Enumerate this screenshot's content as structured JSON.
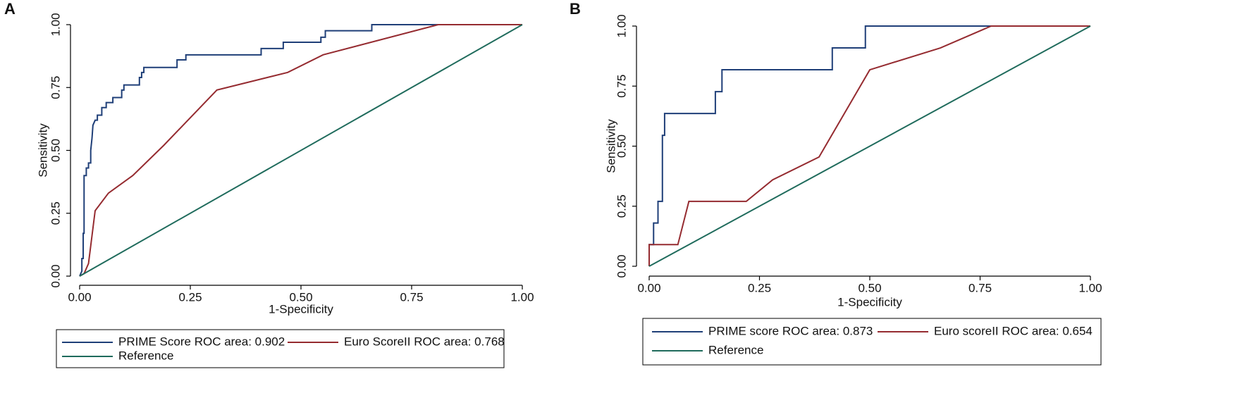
{
  "chart_data": [
    {
      "type": "line",
      "panel_label": "A",
      "x_label": "1-Specificity",
      "y_label": "Sensitivity",
      "xlim": [
        0,
        1
      ],
      "ylim": [
        0,
        1
      ],
      "xticks": [
        {
          "value": 0,
          "label": "0.00"
        },
        {
          "value": 0.25,
          "label": "0.25"
        },
        {
          "value": 0.5,
          "label": "0.50"
        },
        {
          "value": 0.75,
          "label": "0.75"
        },
        {
          "value": 1,
          "label": "1.00"
        }
      ],
      "yticks": [
        {
          "value": 0,
          "label": "0.00"
        },
        {
          "value": 0.25,
          "label": "0.25"
        },
        {
          "value": 0.5,
          "label": "0.50"
        },
        {
          "value": 0.75,
          "label": "0.75"
        },
        {
          "value": 1,
          "label": "1.00"
        }
      ],
      "series": [
        {
          "name": "PRIME Score ROC area: 0.902",
          "color": "#1f3f78",
          "x": [
            0,
            0.005,
            0.005,
            0.008,
            0.008,
            0.01,
            0.01,
            0.015,
            0.015,
            0.02,
            0.02,
            0.025,
            0.025,
            0.028,
            0.03,
            0.035,
            0.04,
            0.04,
            0.05,
            0.05,
            0.06,
            0.06,
            0.075,
            0.075,
            0.095,
            0.095,
            0.1,
            0.1,
            0.135,
            0.135,
            0.14,
            0.14,
            0.145,
            0.145,
            0.22,
            0.22,
            0.24,
            0.24,
            0.41,
            0.41,
            0.46,
            0.46,
            0.545,
            0.545,
            0.555,
            0.555,
            0.66,
            0.66,
            1
          ],
          "values": [
            0,
            0.02,
            0.07,
            0.07,
            0.17,
            0.17,
            0.4,
            0.4,
            0.43,
            0.43,
            0.45,
            0.45,
            0.5,
            0.55,
            0.6,
            0.62,
            0.62,
            0.64,
            0.64,
            0.67,
            0.67,
            0.69,
            0.69,
            0.71,
            0.71,
            0.74,
            0.74,
            0.76,
            0.76,
            0.79,
            0.79,
            0.81,
            0.81,
            0.83,
            0.83,
            0.86,
            0.86,
            0.88,
            0.88,
            0.905,
            0.905,
            0.93,
            0.93,
            0.95,
            0.95,
            0.976,
            0.976,
            1,
            1
          ]
        },
        {
          "name": "Euro ScoreII ROC area: 0.768",
          "color": "#952b30",
          "x": [
            0,
            0.01,
            0.02,
            0.025,
            0.035,
            0.065,
            0.12,
            0.19,
            0.31,
            0.47,
            0.55,
            0.81,
            1
          ],
          "values": [
            0,
            0.01,
            0.05,
            0.12,
            0.26,
            0.33,
            0.4,
            0.52,
            0.74,
            0.81,
            0.88,
            1,
            1
          ]
        },
        {
          "name": "Reference",
          "color": "#1f6b5c",
          "x": [
            0,
            1
          ],
          "values": [
            0,
            1
          ]
        }
      ]
    },
    {
      "type": "line",
      "panel_label": "B",
      "x_label": "1-Specificity",
      "y_label": "Sensitivity",
      "xlim": [
        0,
        1
      ],
      "ylim": [
        0,
        1
      ],
      "xticks": [
        {
          "value": 0,
          "label": "0.00"
        },
        {
          "value": 0.25,
          "label": "0.25"
        },
        {
          "value": 0.5,
          "label": "0.50"
        },
        {
          "value": 0.75,
          "label": "0.75"
        },
        {
          "value": 1,
          "label": "1.00"
        }
      ],
      "yticks": [
        {
          "value": 0,
          "label": "0.00"
        },
        {
          "value": 0.25,
          "label": "0.25"
        },
        {
          "value": 0.5,
          "label": "0.50"
        },
        {
          "value": 0.75,
          "label": "0.75"
        },
        {
          "value": 1,
          "label": "1.00"
        }
      ],
      "series": [
        {
          "name": "PRIME score ROC area: 0.873",
          "color": "#1f3f78",
          "x": [
            0,
            0,
            0.01,
            0.01,
            0.02,
            0.02,
            0.03,
            0.03,
            0.035,
            0.035,
            0.15,
            0.15,
            0.165,
            0.165,
            0.415,
            0.415,
            0.49,
            0.49,
            1
          ],
          "values": [
            0,
            0.09,
            0.09,
            0.18,
            0.18,
            0.27,
            0.27,
            0.545,
            0.545,
            0.636,
            0.636,
            0.727,
            0.727,
            0.818,
            0.818,
            0.909,
            0.909,
            1,
            1
          ]
        },
        {
          "name": "Euro scoreII ROC area: 0.654",
          "color": "#952b30",
          "x": [
            0,
            0,
            0.065,
            0.09,
            0.22,
            0.28,
            0.385,
            0.5,
            0.66,
            0.775,
            1
          ],
          "values": [
            0,
            0.09,
            0.09,
            0.27,
            0.27,
            0.36,
            0.455,
            0.818,
            0.909,
            1,
            1
          ]
        },
        {
          "name": "Reference",
          "color": "#1f6b5c",
          "x": [
            0,
            1
          ],
          "values": [
            0,
            1
          ]
        }
      ]
    }
  ]
}
